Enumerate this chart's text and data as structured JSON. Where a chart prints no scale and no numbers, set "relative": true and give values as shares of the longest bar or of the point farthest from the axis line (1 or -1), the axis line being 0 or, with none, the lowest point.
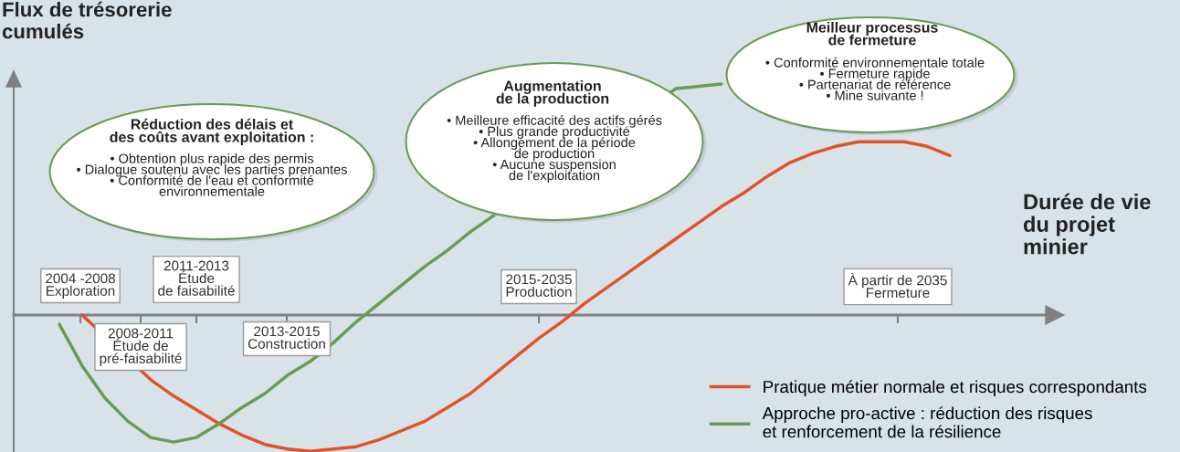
{
  "chart_data": {
    "type": "line",
    "relative": true,
    "ylabel": "Flux de trésorerie\ncumulés",
    "xlabel": "Durée de vie\ndu projet\nminier",
    "categories": [
      null,
      null,
      null,
      null,
      null,
      null,
      null,
      null,
      null,
      null,
      null,
      null,
      null,
      null,
      null,
      null,
      null,
      null,
      null,
      null,
      null,
      null,
      null,
      null,
      null,
      null,
      null,
      null,
      null,
      null,
      null,
      null,
      null,
      null,
      null,
      null,
      null,
      null,
      null,
      null,
      null,
      null,
      null,
      null,
      null,
      null
    ],
    "series": [
      {
        "name": "Pratique métier normale et risques correspondants",
        "color": "#e0522a",
        "values": [
          null,
          null,
          null,
          0,
          null,
          null,
          -0.28,
          -0.35,
          -0.41,
          -0.47,
          -0.52,
          -0.56,
          -0.58,
          -0.59,
          -0.58,
          -0.57,
          -0.54,
          -0.5,
          -0.46,
          -0.4,
          -0.34,
          -0.26,
          -0.18,
          -0.1,
          -0.03,
          0.05,
          0.12,
          0.19,
          0.26,
          0.33,
          0.4,
          0.47,
          0.53,
          0.6,
          0.66,
          0.7,
          0.73,
          0.75,
          0.75,
          0.75,
          0.73,
          0.69,
          null,
          null,
          null,
          null
        ]
      },
      {
        "name": "Approche pro-active : réduction des risques\net renforcement de la résilience",
        "color": "#6a9a58",
        "values": [
          null,
          null,
          -0.04,
          -0.22,
          -0.36,
          -0.46,
          -0.53,
          -0.55,
          -0.53,
          -0.47,
          -0.4,
          -0.34,
          -0.26,
          -0.2,
          -0.12,
          -0.03,
          0.05,
          0.13,
          0.21,
          0.28,
          0.36,
          null,
          null,
          null,
          null,
          null,
          null,
          null,
          null,
          0.98,
          0.99,
          1,
          null,
          null,
          null,
          null,
          null,
          null,
          null,
          null,
          null,
          null,
          null,
          null,
          null,
          null
        ]
      }
    ],
    "legend": "bottom right",
    "annotations": [
      "Réduction des délais et\ndes coûts avant exploitation :",
      "• Obtention plus rapide des permis\n• Dialogue soutenu avec les parties prenantes\n• Conformité de l'eau et conformité\nenvironnementale",
      "Augmentation\nde la production",
      "• Meilleure efficacité des actifs gérés\n• Plus grande productivité\n• Allongement de la période\nde production\n• Aucune suspension\nde l'exploitation",
      "Meilleur processus\nde fermeture",
      "• Conformité environnementale totale\n• Fermeture rapide\n• Partenariat de référence\n• Mine suivante !",
      "2004 -2008\nExploration",
      "2008-2011\nÉtude de\npré-faisabilité",
      "2011-2013\nÉtude\nde faisabilité",
      "2013-2015\nConstruction",
      "2015-2035\nProduction",
      "À partir de 2035\nFermeture"
    ]
  }
}
